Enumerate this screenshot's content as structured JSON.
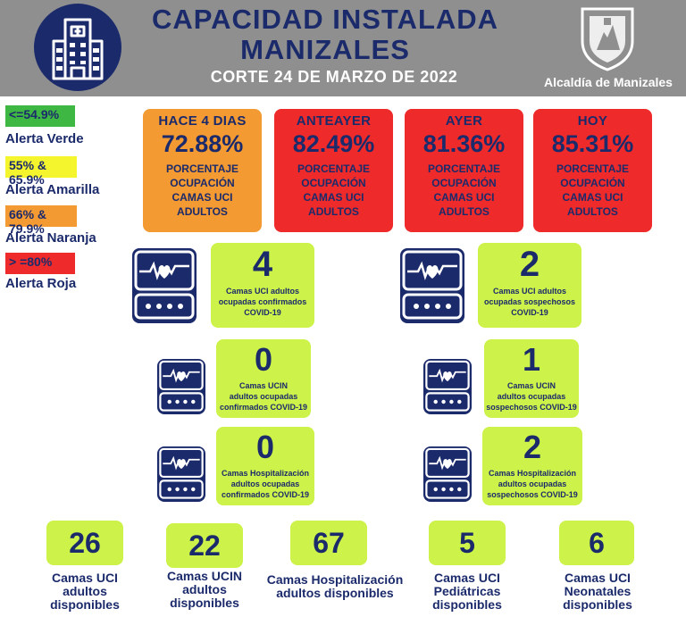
{
  "header": {
    "title_line1": "CAPACIDAD INSTALADA",
    "title_line2": "MANIZALES",
    "date_line": "CORTE 24 DE MARZO DE 2022",
    "crest_label": "Alcaldía de Manizales",
    "bg_color": "#8f8f8f",
    "title_color": "#1b2a6b"
  },
  "legend": [
    {
      "swatch": "<=54.9%",
      "label": "Alerta Verde",
      "color": "#3fb843"
    },
    {
      "swatch": "55% & 65.9%",
      "label": "Alerta Amarilla",
      "color": "#f5f52e"
    },
    {
      "swatch": "66% & 79.9%",
      "label": "Alerta Naranja",
      "color": "#f39a32"
    },
    {
      "swatch": "> =80%",
      "label": "Alerta Roja",
      "color": "#ef2a2a"
    }
  ],
  "occupancy_cards": [
    {
      "period": "HACE 4 DIAS",
      "value": "72.88%",
      "l1": "PORCENTAJE",
      "l2": "OCUPACIÓN",
      "l3": "CAMAS UCI",
      "l4": "ADULTOS",
      "color": "#f39a32"
    },
    {
      "period": "ANTEAYER",
      "value": "82.49%",
      "l1": "PORCENTAJE",
      "l2": "OCUPACIÓN",
      "l3": "CAMAS UCI",
      "l4": "ADULTOS",
      "color": "#ef2a2a"
    },
    {
      "period": "AYER",
      "value": "81.36%",
      "l1": "PORCENTAJE",
      "l2": "OCUPACIÓN",
      "l3": "CAMAS UCI",
      "l4": "ADULTOS",
      "color": "#ef2a2a"
    },
    {
      "period": "HOY",
      "value": "85.31%",
      "l1": "PORCENTAJE",
      "l2": "OCUPACIÓN",
      "l3": "CAMAS UCI",
      "l4": "ADULTOS",
      "color": "#ef2a2a"
    }
  ],
  "covid": {
    "uci_confirmed": {
      "value": "4",
      "l1": "Camas UCI adultos",
      "l2": "ocupadas confirmados",
      "l3": "COVID-19"
    },
    "uci_suspected": {
      "value": "2",
      "l1": "Camas UCI adultos",
      "l2": "ocupadas sospechosos",
      "l3": "COVID-19"
    },
    "ucin_confirmed": {
      "value": "0",
      "l1": "Camas  UCIN",
      "l2": "adultos ocupadas",
      "l3": "confirmados COVID-19"
    },
    "ucin_suspected": {
      "value": "1",
      "l1": "Camas  UCIN",
      "l2": "adultos ocupadas",
      "l3": "sospechosos COVID-19"
    },
    "hosp_confirmed": {
      "value": "0",
      "l1": "Camas  Hospitalización",
      "l2": "adultos ocupadas",
      "l3": "confirmados COVID-19"
    },
    "hosp_suspected": {
      "value": "2",
      "l1": "Camas  Hospitalización",
      "l2": "adultos ocupadas",
      "l3": "sospechosos COVID-19"
    }
  },
  "available": [
    {
      "value": "26",
      "l1": "Camas UCI",
      "l2": "adultos",
      "l3": "disponibles"
    },
    {
      "value": "22",
      "l1": "Camas UCIN",
      "l2": "adultos",
      "l3": "disponibles"
    },
    {
      "value": "67",
      "l1": "Camas  Hospitalización",
      "l2": "adultos disponibles",
      "l3": ""
    },
    {
      "value": "5",
      "l1": "Camas  UCI",
      "l2": "Pediátricas",
      "l3": "disponibles"
    },
    {
      "value": "6",
      "l1": "Camas  UCI",
      "l2": "Neonatales",
      "l3": "disponibles"
    }
  ],
  "icons": {
    "hospital": "hospital-building-icon",
    "crest": "city-crest-icon",
    "monitor": "heart-monitor-icon"
  },
  "colors": {
    "lime": "#cdf24a",
    "navy": "#1b2a6b"
  }
}
